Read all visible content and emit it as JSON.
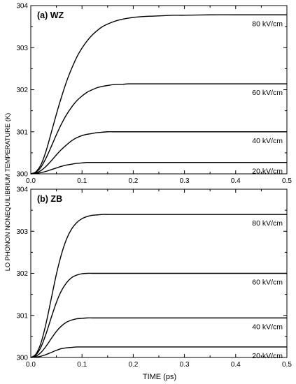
{
  "figure": {
    "ylabel": "LO PHONON NONEQUILIBRIUM TEMPERATURE (K)",
    "xlabel": "TIME (ps)"
  },
  "chart_data": [
    {
      "type": "line",
      "panel_label": "(a) WZ",
      "xlabel": "TIME (ps)",
      "ylabel": "LO PHONON NONEQUILIBRIUM TEMPERATURE (K)",
      "xlim": [
        0.0,
        0.5
      ],
      "ylim": [
        300,
        304
      ],
      "x_ticks": [
        "0.0",
        "0.1",
        "0.2",
        "0.3",
        "0.4",
        "0.5"
      ],
      "y_ticks": [
        "300",
        "301",
        "302",
        "303",
        "304"
      ],
      "x": [
        0.0,
        0.01,
        0.02,
        0.03,
        0.04,
        0.05,
        0.06,
        0.07,
        0.08,
        0.09,
        0.1,
        0.11,
        0.12,
        0.13,
        0.14,
        0.15,
        0.16,
        0.17,
        0.18,
        0.19,
        0.2,
        0.22,
        0.24,
        0.26,
        0.28,
        0.3,
        0.35,
        0.4,
        0.45,
        0.5
      ],
      "series": [
        {
          "name": "80 kV/cm",
          "values": [
            300.0,
            300.05,
            300.22,
            300.55,
            300.98,
            301.42,
            301.83,
            302.2,
            302.51,
            302.78,
            302.99,
            303.16,
            303.3,
            303.41,
            303.5,
            303.56,
            303.61,
            303.65,
            303.68,
            303.7,
            303.72,
            303.74,
            303.75,
            303.76,
            303.77,
            303.77,
            303.78,
            303.78,
            303.78,
            303.78
          ]
        },
        {
          "name": "60 kV/cm",
          "values": [
            300.0,
            300.04,
            300.16,
            300.38,
            300.65,
            300.93,
            301.19,
            301.41,
            301.59,
            301.74,
            301.85,
            301.94,
            302.0,
            302.05,
            302.08,
            302.1,
            302.12,
            302.13,
            302.13,
            302.14,
            302.14,
            302.14,
            302.14,
            302.14,
            302.14,
            302.14,
            302.14,
            302.14,
            302.14,
            302.14
          ]
        },
        {
          "name": "40 kV/cm",
          "values": [
            300.0,
            300.02,
            300.08,
            300.18,
            300.31,
            300.45,
            300.58,
            300.69,
            300.79,
            300.86,
            300.91,
            300.94,
            300.96,
            300.98,
            300.99,
            301.0,
            301.0,
            301.0,
            301.0,
            301.0,
            301.0,
            301.0,
            301.0,
            301.0,
            301.0,
            301.0,
            301.0,
            301.0,
            301.0,
            301.0
          ]
        },
        {
          "name": "20 kV/cm",
          "values": [
            300.0,
            300.01,
            300.03,
            300.06,
            300.1,
            300.14,
            300.18,
            300.21,
            300.23,
            300.25,
            300.26,
            300.27,
            300.27,
            300.27,
            300.27,
            300.27,
            300.27,
            300.27,
            300.27,
            300.27,
            300.27,
            300.27,
            300.27,
            300.27,
            300.27,
            300.27,
            300.27,
            300.27,
            300.27,
            300.27
          ]
        }
      ]
    },
    {
      "type": "line",
      "panel_label": "(b) ZB",
      "xlabel": "TIME (ps)",
      "ylabel": "LO PHONON NONEQUILIBRIUM TEMPERATURE (K)",
      "xlim": [
        0.0,
        0.5
      ],
      "ylim": [
        300,
        304
      ],
      "x_ticks": [
        "0.0",
        "0.1",
        "0.2",
        "0.3",
        "0.4",
        "0.5"
      ],
      "y_ticks": [
        "300",
        "301",
        "302",
        "303",
        "304"
      ],
      "x": [
        0.0,
        0.01,
        0.02,
        0.03,
        0.04,
        0.05,
        0.06,
        0.07,
        0.08,
        0.09,
        0.1,
        0.11,
        0.12,
        0.13,
        0.14,
        0.15,
        0.16,
        0.17,
        0.18,
        0.19,
        0.2,
        0.22,
        0.24,
        0.26,
        0.28,
        0.3,
        0.35,
        0.4,
        0.45,
        0.5
      ],
      "series": [
        {
          "name": "80 kV/cm",
          "values": [
            300.0,
            300.08,
            300.35,
            300.82,
            301.4,
            301.98,
            302.46,
            302.82,
            303.06,
            303.21,
            303.3,
            303.35,
            303.38,
            303.39,
            303.4,
            303.4,
            303.4,
            303.4,
            303.4,
            303.4,
            303.4,
            303.4,
            303.4,
            303.4,
            303.4,
            303.4,
            303.4,
            303.4,
            303.4,
            303.4
          ]
        },
        {
          "name": "60 kV/cm",
          "values": [
            300.0,
            300.06,
            300.25,
            300.57,
            300.95,
            301.31,
            301.59,
            301.78,
            301.9,
            301.96,
            301.99,
            302.0,
            302.0,
            302.0,
            302.0,
            302.0,
            302.0,
            302.0,
            302.0,
            302.0,
            302.0,
            302.0,
            302.0,
            302.0,
            302.0,
            302.0,
            302.0,
            302.0,
            302.0,
            302.0
          ]
        },
        {
          "name": "40 kV/cm",
          "values": [
            300.0,
            300.03,
            300.12,
            300.27,
            300.45,
            300.62,
            300.75,
            300.84,
            300.89,
            300.92,
            300.93,
            300.94,
            300.94,
            300.94,
            300.94,
            300.94,
            300.94,
            300.94,
            300.94,
            300.94,
            300.94,
            300.94,
            300.94,
            300.94,
            300.94,
            300.94,
            300.94,
            300.94,
            300.94,
            300.94
          ]
        },
        {
          "name": "20 kV/cm",
          "values": [
            300.0,
            300.01,
            300.03,
            300.07,
            300.12,
            300.17,
            300.21,
            300.23,
            300.24,
            300.25,
            300.25,
            300.25,
            300.25,
            300.25,
            300.25,
            300.25,
            300.25,
            300.25,
            300.25,
            300.25,
            300.25,
            300.25,
            300.25,
            300.25,
            300.25,
            300.25,
            300.25,
            300.25,
            300.25,
            300.25
          ]
        }
      ]
    }
  ]
}
